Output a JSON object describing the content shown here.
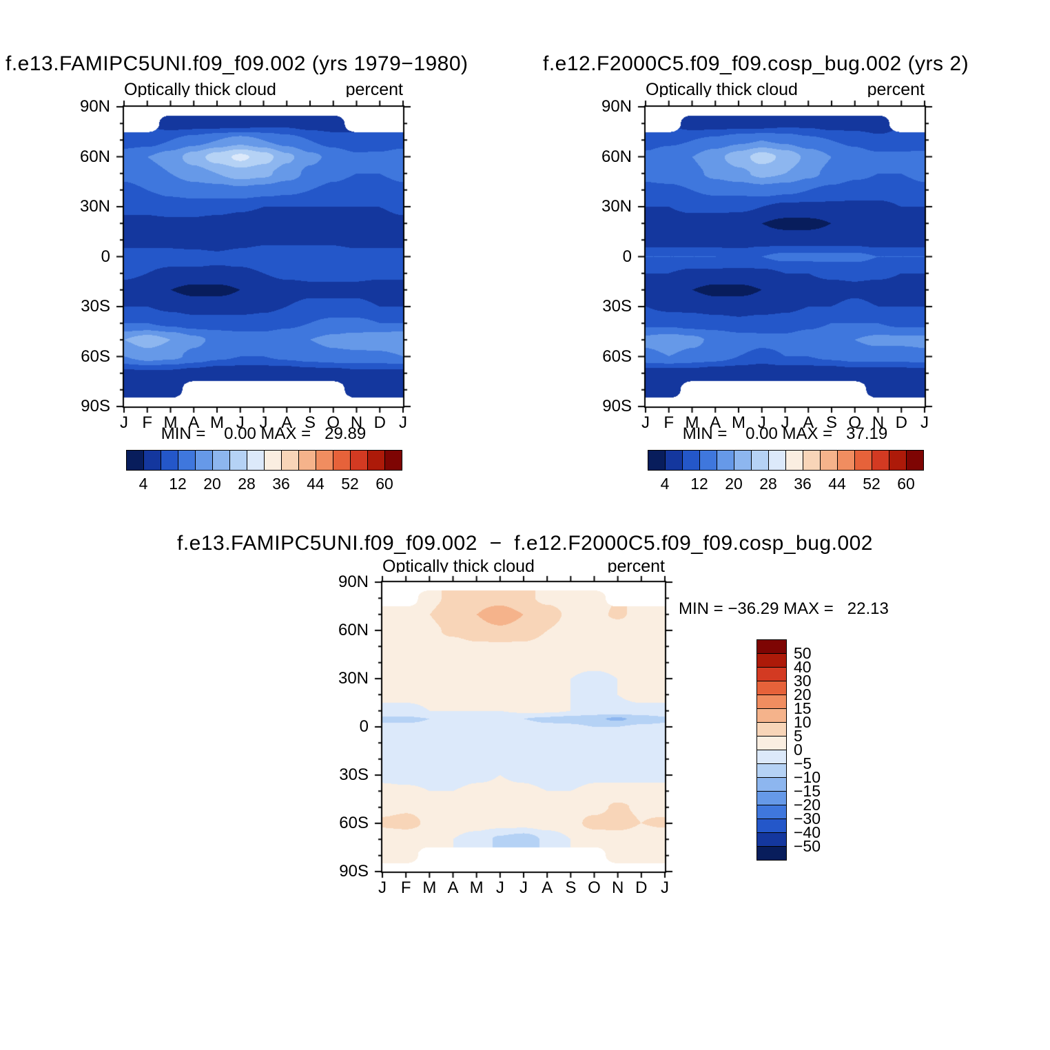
{
  "page_background": "#ffffff",
  "palette": [
    "#081d5c",
    "#14379e",
    "#2457c9",
    "#3f77dd",
    "#6699e8",
    "#8db6ef",
    "#b5d2f5",
    "#dce9fa",
    "#faeee1",
    "#f8d5b8",
    "#f5b38b",
    "#f08d60",
    "#e6623a",
    "#d33a22",
    "#ad1a09",
    "#7e0503"
  ],
  "month_labels": [
    "J",
    "F",
    "M",
    "A",
    "M",
    "J",
    "J",
    "A",
    "S",
    "O",
    "N",
    "D",
    "J"
  ],
  "lat_axis_labels": [
    "90N",
    "60N",
    "30N",
    "0",
    "30S",
    "60S",
    "90S"
  ],
  "panels": [
    {
      "title": "f.e13.FAMIPC5UNI.f09_f09.002 (yrs 1979−1980)",
      "subtitle_left": "Optically thick cloud",
      "subtitle_right": "percent",
      "stats": "MIN =    0.00 MAX =   29.89",
      "colorbar_labels": [
        "4",
        "12",
        "20",
        "28",
        "36",
        "44",
        "52",
        "60"
      ]
    },
    {
      "title": "f.e12.F2000C5.f09_f09.cosp_bug.002 (yrs 2)",
      "subtitle_left": "Optically thick cloud",
      "subtitle_right": "percent",
      "stats": "MIN =    0.00 MAX =   37.19",
      "colorbar_labels": [
        "4",
        "12",
        "20",
        "28",
        "36",
        "44",
        "52",
        "60"
      ]
    },
    {
      "title": "f.e13.FAMIPC5UNI.f09_f09.002  −  f.e12.F2000C5.f09_f09.cosp_bug.002",
      "subtitle_left": "Optically thick cloud",
      "subtitle_right": "percent",
      "stats": "MIN = −36.29 MAX =   22.13",
      "colorbar_labels": [
        "50",
        "40",
        "30",
        "20",
        "15",
        "10",
        "5",
        "0",
        "−5",
        "−10",
        "−15",
        "−20",
        "−30",
        "−40",
        "−50"
      ]
    }
  ],
  "chart_data": [
    {
      "type": "heatmap",
      "title": "f.e13.FAMIPC5UNI.f09_f09.002 (yrs 1979−1980)",
      "variable": "Optically thick cloud",
      "units": "percent",
      "min": 0.0,
      "max": 29.89,
      "x": [
        "J",
        "F",
        "M",
        "A",
        "M",
        "J",
        "J",
        "A",
        "S",
        "O",
        "N",
        "D",
        "J"
      ],
      "ylabel_ticks": [
        "90N",
        "60N",
        "30N",
        "0",
        "30S",
        "60S",
        "90S"
      ],
      "levels": [
        4,
        8,
        12,
        16,
        20,
        24,
        28,
        32,
        36,
        40,
        44,
        48,
        52,
        56,
        60
      ],
      "lats": [
        90,
        80,
        70,
        60,
        50,
        40,
        30,
        20,
        10,
        0,
        -10,
        -20,
        -30,
        -40,
        -50,
        -60,
        -70,
        -80,
        -90
      ],
      "values": [
        [
          null,
          null,
          null,
          null,
          null,
          null,
          null,
          null,
          null,
          null,
          null,
          null,
          null
        ],
        [
          null,
          null,
          6,
          6,
          6,
          6,
          7,
          7,
          6,
          6,
          null,
          null,
          null
        ],
        [
          10,
          10,
          12,
          14,
          16,
          18,
          16,
          14,
          12,
          10,
          8,
          9,
          10
        ],
        [
          14,
          16,
          18,
          22,
          26,
          29,
          26,
          21,
          17,
          15,
          13,
          13,
          14
        ],
        [
          13,
          14,
          16,
          18,
          20,
          22,
          21,
          18,
          15,
          13,
          12,
          12,
          13
        ],
        [
          11,
          12,
          13,
          14,
          14,
          15,
          14,
          13,
          12,
          11,
          10,
          10,
          11
        ],
        [
          9,
          9,
          10,
          10,
          10,
          9,
          8,
          8,
          8,
          8,
          8,
          8,
          9
        ],
        [
          7,
          7,
          7,
          7,
          6,
          5,
          4,
          4,
          5,
          6,
          6,
          6,
          7
        ],
        [
          6,
          6,
          6,
          5,
          5,
          6,
          7,
          7,
          7,
          7,
          6,
          6,
          6
        ],
        [
          10,
          10,
          10,
          10,
          9,
          10,
          11,
          11,
          11,
          11,
          10,
          10,
          10
        ],
        [
          9,
          8,
          7,
          7,
          7,
          7,
          8,
          9,
          9,
          9,
          9,
          9,
          9
        ],
        [
          6,
          5,
          4,
          3,
          3,
          4,
          5,
          6,
          7,
          7,
          7,
          6,
          6
        ],
        [
          8,
          8,
          7,
          6,
          6,
          6,
          7,
          8,
          9,
          9,
          9,
          8,
          8
        ],
        [
          12,
          12,
          11,
          10,
          10,
          10,
          10,
          11,
          12,
          13,
          13,
          12,
          12
        ],
        [
          20,
          22,
          20,
          17,
          15,
          14,
          14,
          15,
          16,
          17,
          18,
          19,
          20
        ],
        [
          16,
          18,
          17,
          15,
          13,
          12,
          12,
          13,
          14,
          15,
          15,
          15,
          16
        ],
        [
          7,
          7,
          7,
          6,
          5,
          5,
          5,
          5,
          6,
          6,
          7,
          7,
          7
        ],
        [
          5,
          5,
          5,
          null,
          null,
          null,
          null,
          null,
          null,
          null,
          5,
          5,
          5
        ],
        [
          null,
          null,
          null,
          null,
          null,
          null,
          null,
          null,
          null,
          null,
          null,
          null,
          null
        ]
      ]
    },
    {
      "type": "heatmap",
      "title": "f.e12.F2000C5.f09_f09.cosp_bug.002 (yrs 2)",
      "variable": "Optically thick cloud",
      "units": "percent",
      "min": 0.0,
      "max": 37.19,
      "x": [
        "J",
        "F",
        "M",
        "A",
        "M",
        "J",
        "J",
        "A",
        "S",
        "O",
        "N",
        "D",
        "J"
      ],
      "ylabel_ticks": [
        "90N",
        "60N",
        "30N",
        "0",
        "30S",
        "60S",
        "90S"
      ],
      "levels": [
        4,
        8,
        12,
        16,
        20,
        24,
        28,
        32,
        36,
        40,
        44,
        48,
        52,
        56,
        60
      ],
      "lats": [
        90,
        80,
        70,
        60,
        50,
        40,
        30,
        20,
        10,
        0,
        -10,
        -20,
        -30,
        -40,
        -50,
        -60,
        -70,
        -80,
        -90
      ],
      "values": [
        [
          null,
          null,
          null,
          null,
          null,
          null,
          null,
          null,
          null,
          null,
          null,
          null,
          null
        ],
        [
          null,
          null,
          6,
          6,
          6,
          6,
          7,
          7,
          6,
          6,
          6,
          null,
          null
        ],
        [
          10,
          11,
          12,
          13,
          15,
          16,
          15,
          13,
          12,
          11,
          9,
          9,
          10
        ],
        [
          13,
          15,
          16,
          19,
          22,
          26,
          23,
          19,
          16,
          14,
          13,
          13,
          13
        ],
        [
          13,
          14,
          15,
          17,
          19,
          21,
          20,
          17,
          15,
          13,
          12,
          12,
          13
        ],
        [
          11,
          11,
          12,
          13,
          13,
          14,
          13,
          12,
          11,
          10,
          10,
          10,
          11
        ],
        [
          8,
          8,
          9,
          9,
          9,
          8,
          7,
          7,
          7,
          7,
          7,
          8,
          8
        ],
        [
          6,
          6,
          6,
          6,
          5,
          4,
          3,
          3,
          4,
          5,
          5,
          6,
          6
        ],
        [
          5,
          5,
          5,
          5,
          5,
          6,
          6,
          6,
          6,
          6,
          5,
          5,
          5
        ],
        [
          12,
          12,
          12,
          12,
          11,
          12,
          13,
          13,
          13,
          13,
          12,
          12,
          12
        ],
        [
          8,
          8,
          7,
          7,
          7,
          7,
          8,
          8,
          9,
          9,
          9,
          8,
          8
        ],
        [
          6,
          5,
          4,
          3,
          3,
          4,
          5,
          6,
          6,
          7,
          6,
          6,
          6
        ],
        [
          8,
          7,
          7,
          6,
          6,
          6,
          7,
          8,
          8,
          9,
          8,
          8,
          8
        ],
        [
          11,
          11,
          10,
          10,
          9,
          10,
          10,
          11,
          12,
          12,
          12,
          11,
          11
        ],
        [
          17,
          18,
          17,
          15,
          14,
          13,
          13,
          14,
          15,
          16,
          17,
          17,
          17
        ],
        [
          15,
          16,
          15,
          14,
          12,
          11,
          12,
          12,
          13,
          14,
          14,
          14,
          15
        ],
        [
          6,
          6,
          6,
          5,
          5,
          4,
          5,
          5,
          5,
          6,
          6,
          6,
          6
        ],
        [
          5,
          5,
          null,
          null,
          null,
          null,
          null,
          null,
          null,
          null,
          5,
          5,
          5
        ],
        [
          null,
          null,
          null,
          null,
          null,
          null,
          null,
          null,
          null,
          null,
          null,
          null,
          null
        ]
      ]
    },
    {
      "type": "heatmap",
      "title": "difference: f.e13.FAMIPC5UNI.f09_f09.002 − f.e12.F2000C5.f09_f09.cosp_bug.002",
      "variable": "Optically thick cloud",
      "units": "percent",
      "min": -36.29,
      "max": 22.13,
      "x": [
        "J",
        "F",
        "M",
        "A",
        "M",
        "J",
        "J",
        "A",
        "S",
        "O",
        "N",
        "D",
        "J"
      ],
      "ylabel_ticks": [
        "90N",
        "60N",
        "30N",
        "0",
        "30S",
        "60S",
        "90S"
      ],
      "levels": [
        -50,
        -40,
        -30,
        -20,
        -15,
        -10,
        -5,
        0,
        5,
        10,
        15,
        20,
        30,
        40,
        50
      ],
      "lats": [
        90,
        80,
        70,
        60,
        50,
        40,
        30,
        20,
        10,
        5,
        0,
        -10,
        -20,
        -30,
        -40,
        -50,
        -60,
        -70,
        -80,
        -90
      ],
      "values": [
        [
          null,
          null,
          null,
          null,
          null,
          null,
          null,
          null,
          null,
          null,
          null,
          null,
          null
        ],
        [
          null,
          null,
          4,
          6,
          8,
          8,
          6,
          4,
          3,
          2,
          null,
          null,
          null
        ],
        [
          3,
          4,
          5,
          8,
          10,
          13,
          10,
          7,
          4,
          3,
          6,
          3,
          3
        ],
        [
          2,
          3,
          4,
          6,
          8,
          9,
          8,
          5,
          3,
          2,
          1,
          1,
          2
        ],
        [
          2,
          2,
          3,
          3,
          4,
          4,
          4,
          3,
          2,
          1,
          1,
          1,
          2
        ],
        [
          1,
          2,
          2,
          2,
          2,
          2,
          2,
          2,
          1,
          1,
          1,
          1,
          1
        ],
        [
          1,
          1,
          1,
          1,
          1,
          1,
          1,
          1,
          0,
          -1,
          0,
          1,
          1
        ],
        [
          1,
          1,
          1,
          0,
          0,
          1,
          1,
          1,
          0,
          0,
          0,
          1,
          1
        ],
        [
          -1,
          -1,
          0,
          0,
          0,
          0,
          1,
          1,
          0,
          -1,
          -1,
          -1,
          -1
        ],
        [
          -6,
          -6,
          -5,
          -4,
          -4,
          -4,
          -5,
          -6,
          -7,
          -9,
          -11,
          -8,
          -6
        ],
        [
          -4,
          -4,
          -4,
          -3,
          -3,
          -3,
          -3,
          -4,
          -4,
          -5,
          -5,
          -4,
          -4
        ],
        [
          -3,
          -3,
          -3,
          -2,
          -2,
          -2,
          -3,
          -3,
          -4,
          -4,
          -4,
          -3,
          -3
        ],
        [
          -2,
          -2,
          -3,
          -2,
          -1,
          -1,
          -2,
          -3,
          -3,
          -3,
          -2,
          -2,
          -2
        ],
        [
          -1,
          -2,
          -2,
          -2,
          -1,
          0,
          -1,
          -2,
          -2,
          -1,
          -1,
          -1,
          -1
        ],
        [
          1,
          1,
          0,
          0,
          1,
          1,
          1,
          0,
          0,
          1,
          1,
          1,
          1
        ],
        [
          3,
          4,
          3,
          2,
          2,
          2,
          2,
          2,
          2,
          3,
          6,
          4,
          3
        ],
        [
          6,
          7,
          4,
          2,
          2,
          2,
          2,
          3,
          3,
          7,
          8,
          5,
          6
        ],
        [
          1,
          1,
          1,
          0,
          -2,
          -6,
          -8,
          -4,
          0,
          1,
          1,
          1,
          1
        ],
        [
          0,
          0,
          null,
          null,
          null,
          null,
          null,
          null,
          null,
          null,
          0,
          0,
          0
        ],
        [
          null,
          null,
          null,
          null,
          null,
          null,
          null,
          null,
          null,
          null,
          null,
          null,
          null
        ]
      ]
    }
  ]
}
